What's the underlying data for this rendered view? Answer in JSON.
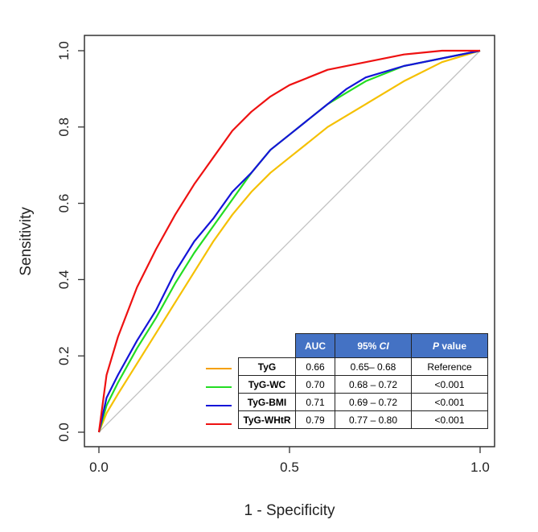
{
  "chart_data": {
    "type": "line",
    "title": "",
    "xlabel": "1 - Specificity",
    "ylabel": "Sensitivity",
    "xlim": [
      0,
      1
    ],
    "ylim": [
      0,
      1
    ],
    "xticks": [
      "0.0",
      "0.5",
      "1.0"
    ],
    "yticks": [
      "0.0",
      "0.2",
      "0.4",
      "0.6",
      "0.8",
      "1.0"
    ],
    "xtick_values": [
      0,
      0.5,
      1
    ],
    "ytick_values": [
      0,
      0.2,
      0.4,
      0.6,
      0.8,
      1.0
    ],
    "grid": false,
    "reference_line": {
      "color": "#c0c0c0",
      "points": [
        [
          0,
          0
        ],
        [
          1,
          1
        ]
      ]
    },
    "series": [
      {
        "name": "TyG",
        "color": "#f5c000",
        "legend_color": "#f5a000",
        "x": [
          0,
          0.02,
          0.05,
          0.1,
          0.15,
          0.2,
          0.25,
          0.3,
          0.35,
          0.4,
          0.45,
          0.5,
          0.55,
          0.6,
          0.7,
          0.8,
          0.9,
          1
        ],
        "y": [
          0,
          0.05,
          0.1,
          0.18,
          0.26,
          0.34,
          0.42,
          0.5,
          0.57,
          0.63,
          0.68,
          0.72,
          0.76,
          0.8,
          0.86,
          0.92,
          0.97,
          1
        ]
      },
      {
        "name": "TyG-WC",
        "color": "#22dd22",
        "legend_color": "#22dd22",
        "x": [
          0,
          0.02,
          0.05,
          0.1,
          0.15,
          0.2,
          0.25,
          0.3,
          0.35,
          0.4,
          0.45,
          0.5,
          0.55,
          0.6,
          0.65,
          0.7,
          0.8,
          0.9,
          1
        ],
        "y": [
          0,
          0.07,
          0.13,
          0.22,
          0.3,
          0.39,
          0.47,
          0.54,
          0.61,
          0.68,
          0.74,
          0.78,
          0.82,
          0.86,
          0.89,
          0.92,
          0.96,
          0.98,
          1
        ]
      },
      {
        "name": "TyG-BMI",
        "color": "#1414d8",
        "legend_color": "#1414d8",
        "x": [
          0,
          0.02,
          0.05,
          0.1,
          0.15,
          0.2,
          0.25,
          0.3,
          0.35,
          0.4,
          0.45,
          0.5,
          0.55,
          0.6,
          0.65,
          0.7,
          0.8,
          0.9,
          1
        ],
        "y": [
          0,
          0.09,
          0.15,
          0.24,
          0.32,
          0.42,
          0.5,
          0.56,
          0.63,
          0.68,
          0.74,
          0.78,
          0.82,
          0.86,
          0.9,
          0.93,
          0.96,
          0.98,
          1
        ]
      },
      {
        "name": "TyG-WHtR",
        "color": "#ee1111",
        "legend_color": "#ee1111",
        "x": [
          0,
          0.02,
          0.05,
          0.1,
          0.15,
          0.2,
          0.25,
          0.3,
          0.35,
          0.4,
          0.45,
          0.5,
          0.55,
          0.6,
          0.7,
          0.8,
          0.9,
          1
        ],
        "y": [
          0,
          0.15,
          0.25,
          0.38,
          0.48,
          0.57,
          0.65,
          0.72,
          0.79,
          0.84,
          0.88,
          0.91,
          0.93,
          0.95,
          0.97,
          0.99,
          1,
          1
        ]
      }
    ],
    "table": {
      "headers": [
        "AUC",
        "95% CI",
        "P value"
      ],
      "header_color": "#4472c4",
      "rows": [
        {
          "name": "TyG",
          "auc": "0.66",
          "ci": "0.65– 0.68",
          "p": "Reference"
        },
        {
          "name": "TyG-WC",
          "auc": "0.70",
          "ci": "0.68 – 0.72",
          "p": "<0.001"
        },
        {
          "name": "TyG-BMI",
          "auc": "0.71",
          "ci": "0.69 – 0.72",
          "p": "<0.001"
        },
        {
          "name": "TyG-WHtR",
          "auc": "0.79",
          "ci": "0.77 – 0.80",
          "p": "<0.001"
        }
      ]
    }
  }
}
